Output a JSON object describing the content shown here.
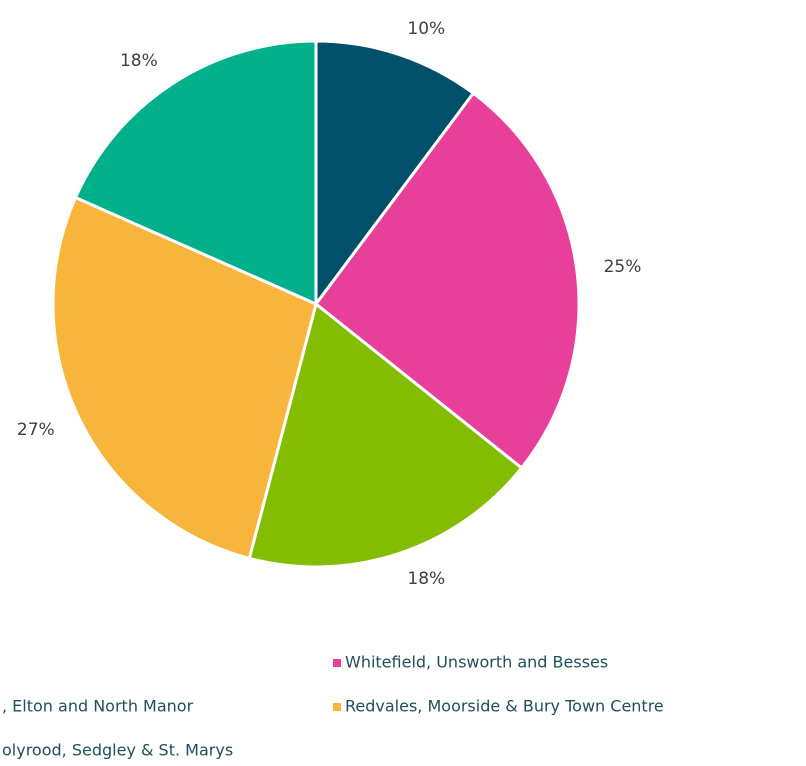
{
  "chart_data": {
    "type": "pie",
    "categories": [
      null,
      "Whitefield, Unsworth and Besses",
      ", Elton and North Manor",
      "Redvales, Moorside & Bury Town Centre",
      "olyrood, Sedgley & St. Marys"
    ],
    "values": [
      10,
      25,
      18,
      27,
      18
    ],
    "value_labels": [
      "10%",
      "25%",
      "18%",
      "27%",
      "18%"
    ],
    "colors": [
      "#00506b",
      "#e8409a",
      "#84bd00",
      "#f7b53b",
      "#00b08a"
    ],
    "legend": "bottom"
  }
}
